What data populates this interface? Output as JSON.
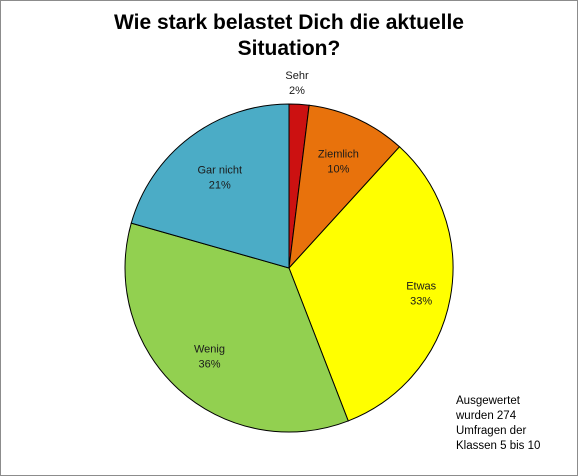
{
  "chart_data": {
    "type": "pie",
    "title_lines": [
      "Wie stark belastet Dich die aktuelle",
      "Situation?"
    ],
    "slices": [
      {
        "label": "Sehr",
        "value": 2,
        "value_label": "2%",
        "color": "#cc1111"
      },
      {
        "label": "Ziemlich",
        "value": 10,
        "value_label": "10%",
        "color": "#e8720c"
      },
      {
        "label": "Etwas",
        "value": 33,
        "value_label": "33%",
        "color": "#ffff00"
      },
      {
        "label": "Wenig",
        "value": 36,
        "value_label": "36%",
        "color": "#92d050"
      },
      {
        "label": "Gar nicht",
        "value": 21,
        "value_label": "21%",
        "color": "#4bacc6"
      }
    ],
    "slice_border_color": "#000000",
    "note_lines": [
      "Ausgewertet",
      "wurden 274",
      "Umfragen der",
      "Klassen  5 bis 10"
    ]
  }
}
